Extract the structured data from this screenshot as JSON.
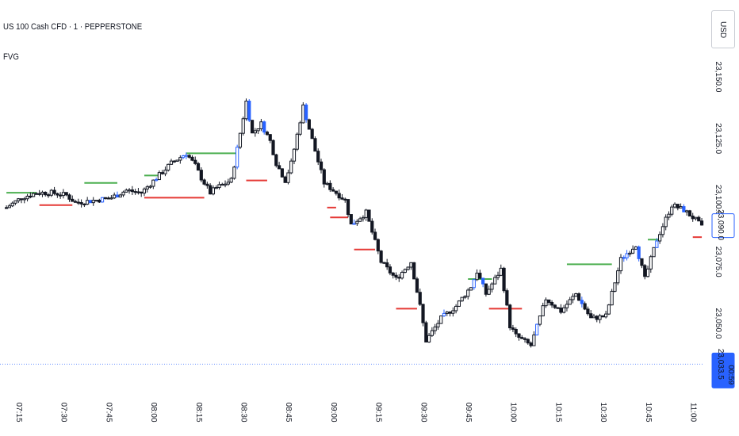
{
  "header": {
    "symbol_title": "US 100 Cash CFD · 1 · PEPPERSTONE",
    "indicator_name": "FVG",
    "currency": "USD"
  },
  "colors": {
    "bullish_fvg": "#4caf50",
    "bearish_fvg": "#e53935",
    "candle_body": "#131722",
    "highlight_candle": "#2962ff",
    "last_price_line": "#2962ff",
    "axis_text": "#131722"
  },
  "chart_data": {
    "type": "candlestick",
    "title": "US 100 Cash CFD · 1 · PEPPERSTONE",
    "y_axis": {
      "ticks": [
        23150,
        23125,
        23100,
        23075,
        23050
      ],
      "tick_labels": [
        "23,150.0",
        "23,125.0",
        "23,100.0",
        "23,075.0",
        "23,050.0"
      ],
      "range": [
        23025,
        23165
      ]
    },
    "x_axis": {
      "ticks": [
        "07:15",
        "07:30",
        "07:45",
        "08:00",
        "08:15",
        "08:30",
        "08:45",
        "09:00",
        "09:15",
        "09:30",
        "09:45",
        "10:00",
        "10:15",
        "10:30",
        "10:45",
        "11:00"
      ]
    },
    "price_labels": [
      {
        "value": 23090.0,
        "label": "23,090.0",
        "style": "outline"
      },
      {
        "value": 23033.5,
        "label": "23,033.5",
        "sub": "00:59",
        "style": "filled"
      }
    ],
    "close_path": [
      [
        "07:10",
        23097
      ],
      [
        "07:15",
        23101
      ],
      [
        "07:20",
        23103
      ],
      [
        "07:25",
        23103
      ],
      [
        "07:30",
        23102
      ],
      [
        "07:33",
        23099
      ],
      [
        "07:40",
        23100
      ],
      [
        "07:45",
        23101
      ],
      [
        "07:50",
        23104
      ],
      [
        "07:55",
        23103
      ],
      [
        "08:00",
        23109
      ],
      [
        "08:05",
        23115
      ],
      [
        "08:10",
        23119
      ],
      [
        "08:13",
        23114
      ],
      [
        "08:15",
        23109
      ],
      [
        "08:18",
        23103
      ],
      [
        "08:20",
        23105
      ],
      [
        "08:25",
        23108
      ],
      [
        "08:30",
        23140
      ],
      [
        "08:32",
        23127
      ],
      [
        "08:35",
        23131
      ],
      [
        "08:38",
        23124
      ],
      [
        "08:40",
        23115
      ],
      [
        "08:43",
        23108
      ],
      [
        "08:45",
        23115
      ],
      [
        "08:49",
        23138
      ],
      [
        "08:53",
        23120
      ],
      [
        "08:56",
        23107
      ],
      [
        "09:00",
        23103
      ],
      [
        "09:03",
        23100
      ],
      [
        "09:05",
        23090
      ],
      [
        "09:10",
        23095
      ],
      [
        "09:15",
        23075
      ],
      [
        "09:20",
        23068
      ],
      [
        "09:25",
        23075
      ],
      [
        "09:28",
        23057
      ],
      [
        "09:30",
        23043
      ],
      [
        "09:35",
        23052
      ],
      [
        "09:40",
        23057
      ],
      [
        "09:45",
        23065
      ],
      [
        "09:47",
        23071
      ],
      [
        "09:50",
        23062
      ],
      [
        "09:55",
        23072
      ],
      [
        "09:58",
        23049
      ],
      [
        "10:00",
        23045
      ],
      [
        "10:05",
        23041
      ],
      [
        "10:10",
        23060
      ],
      [
        "10:15",
        23055
      ],
      [
        "10:20",
        23062
      ],
      [
        "10:25",
        23052
      ],
      [
        "10:30",
        23053
      ],
      [
        "10:35",
        23076
      ],
      [
        "10:40",
        23082
      ],
      [
        "10:43",
        23068
      ],
      [
        "10:47",
        23084
      ],
      [
        "10:52",
        23098
      ],
      [
        "10:56",
        23096
      ],
      [
        "11:00",
        23092
      ],
      [
        "11:02",
        23089
      ]
    ],
    "fvg_zones": [
      {
        "type": "bullish",
        "start": "07:10",
        "end": "07:20",
        "price": 23103
      },
      {
        "type": "bullish",
        "start": "07:36",
        "end": "07:47",
        "price": 23107
      },
      {
        "type": "bullish",
        "start": "07:56",
        "end": "08:01",
        "price": 23110
      },
      {
        "type": "bullish",
        "start": "08:10",
        "end": "08:27",
        "price": 23119
      },
      {
        "type": "bullish",
        "start": "09:44",
        "end": "09:52",
        "price": 23068
      },
      {
        "type": "bullish",
        "start": "10:17",
        "end": "10:32",
        "price": 23074
      },
      {
        "type": "bullish",
        "start": "10:44",
        "end": "10:48",
        "price": 23084
      },
      {
        "type": "bearish",
        "start": "07:21",
        "end": "07:32",
        "price": 23098
      },
      {
        "type": "bearish",
        "start": "07:56",
        "end": "08:16",
        "price": 23101
      },
      {
        "type": "bearish",
        "start": "08:30",
        "end": "08:37",
        "price": 23108
      },
      {
        "type": "bearish",
        "start": "08:57",
        "end": "09:00",
        "price": 23097
      },
      {
        "type": "bearish",
        "start": "08:58",
        "end": "09:04",
        "price": 23093
      },
      {
        "type": "bearish",
        "start": "09:06",
        "end": "09:13",
        "price": 23080
      },
      {
        "type": "bearish",
        "start": "09:20",
        "end": "09:27",
        "price": 23056
      },
      {
        "type": "bearish",
        "start": "09:51",
        "end": "10:02",
        "price": 23056
      },
      {
        "type": "bearish",
        "start": "10:59",
        "end": "11:02",
        "price": 23085
      }
    ]
  }
}
